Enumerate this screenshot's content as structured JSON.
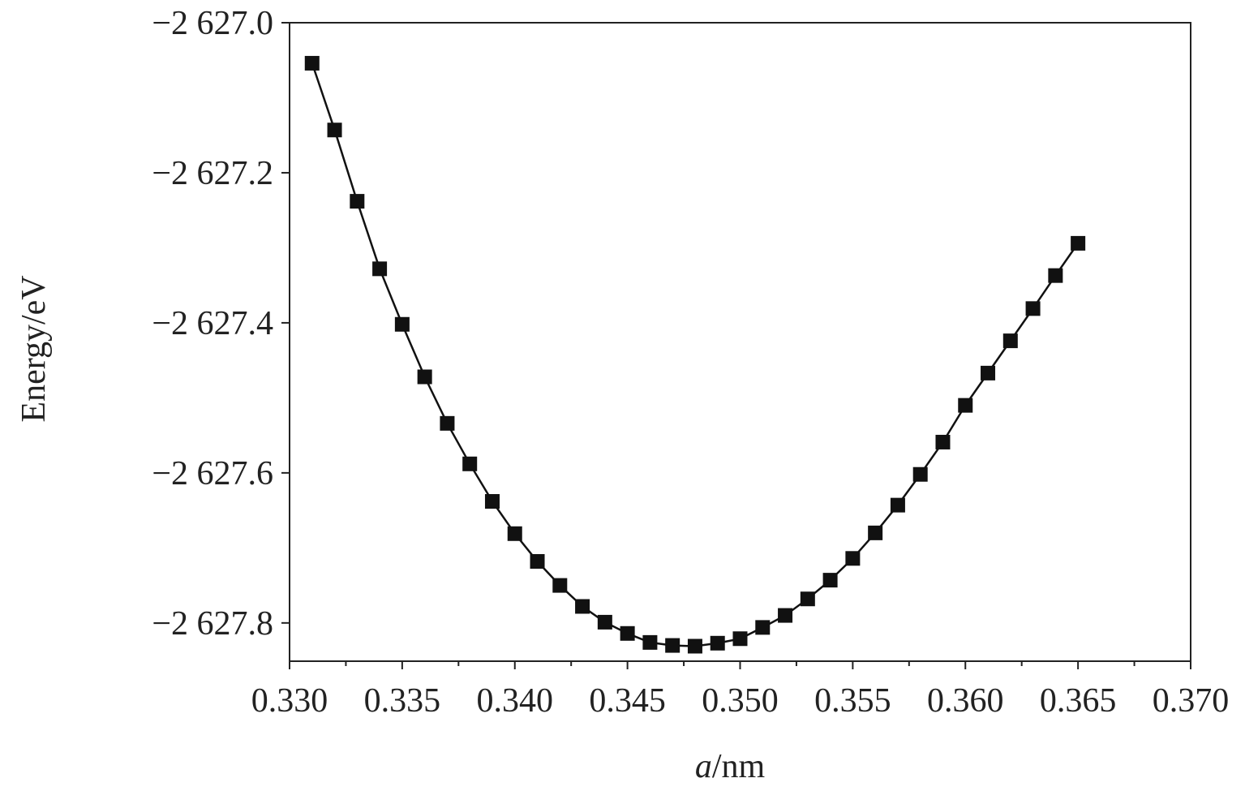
{
  "chart_data": {
    "type": "line",
    "title": "",
    "xlabel_italic": "a",
    "xlabel_rest": "/nm",
    "ylabel": "Energy/eV",
    "xlim": [
      0.33,
      0.37
    ],
    "ylim": [
      -2627.851,
      -2627.0
    ],
    "grid": false,
    "legend": "none",
    "marker": "square",
    "line_color": "#111111",
    "marker_color": "#111111",
    "x_ticks": [
      0.33,
      0.335,
      0.34,
      0.345,
      0.35,
      0.355,
      0.36,
      0.365,
      0.37
    ],
    "x_tick_labels": [
      "0.330",
      "0.335",
      "0.340",
      "0.345",
      "0.350",
      "0.355",
      "0.360",
      "0.365",
      "0.370"
    ],
    "y_ticks": [
      -2627.0,
      -2627.2,
      -2627.4,
      -2627.6,
      -2627.8
    ],
    "y_tick_labels": [
      "−2 627.0",
      "−2 627.2",
      "−2 627.4",
      "−2 627.6",
      "−2 627.8"
    ],
    "series": [
      {
        "x": [
          0.331,
          0.332,
          0.333,
          0.334,
          0.335,
          0.336,
          0.337,
          0.338,
          0.339,
          0.34,
          0.341,
          0.342,
          0.343,
          0.344,
          0.345,
          0.346,
          0.347,
          0.348,
          0.349,
          0.35,
          0.351,
          0.352,
          0.353,
          0.354,
          0.355,
          0.356,
          0.357,
          0.358,
          0.359,
          0.36,
          0.361,
          0.362,
          0.363,
          0.364,
          0.365
        ],
        "y": [
          -2627.054,
          -2627.143,
          -2627.238,
          -2627.328,
          -2627.402,
          -2627.472,
          -2627.534,
          -2627.588,
          -2627.638,
          -2627.681,
          -2627.718,
          -2627.75,
          -2627.778,
          -2627.799,
          -2627.814,
          -2627.826,
          -2627.83,
          -2627.831,
          -2627.827,
          -2627.821,
          -2627.806,
          -2627.79,
          -2627.768,
          -2627.743,
          -2627.714,
          -2627.68,
          -2627.643,
          -2627.602,
          -2627.559,
          -2627.51,
          -2627.467,
          -2627.424,
          -2627.381,
          -2627.337,
          -2627.294
        ]
      }
    ]
  }
}
